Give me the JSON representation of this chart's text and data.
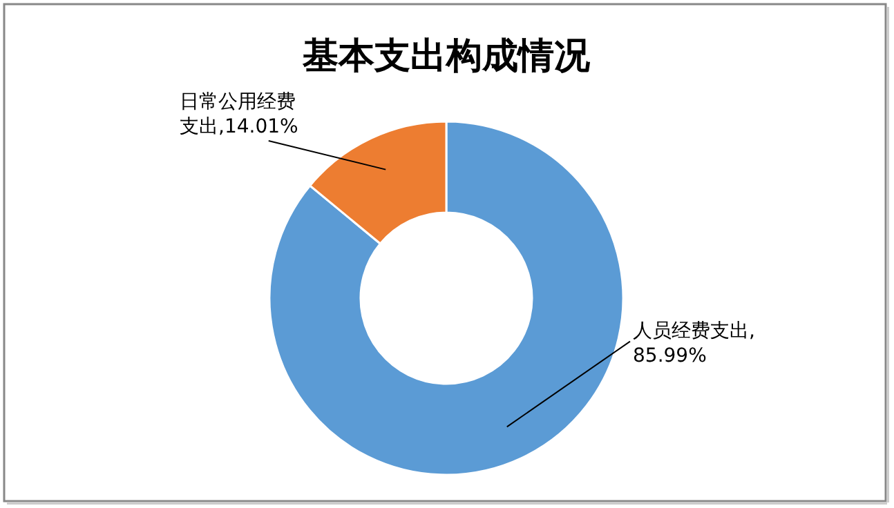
{
  "chart_data": {
    "type": "donut",
    "title": "基本支出构成情况",
    "categories": [
      "人员经费支出",
      "日常公用经费支出"
    ],
    "values": [
      85.99,
      14.01
    ],
    "colors": [
      "#5b9bd5",
      "#ed7d31"
    ],
    "value_labels": [
      ",85.99%",
      ",14.01%"
    ]
  }
}
